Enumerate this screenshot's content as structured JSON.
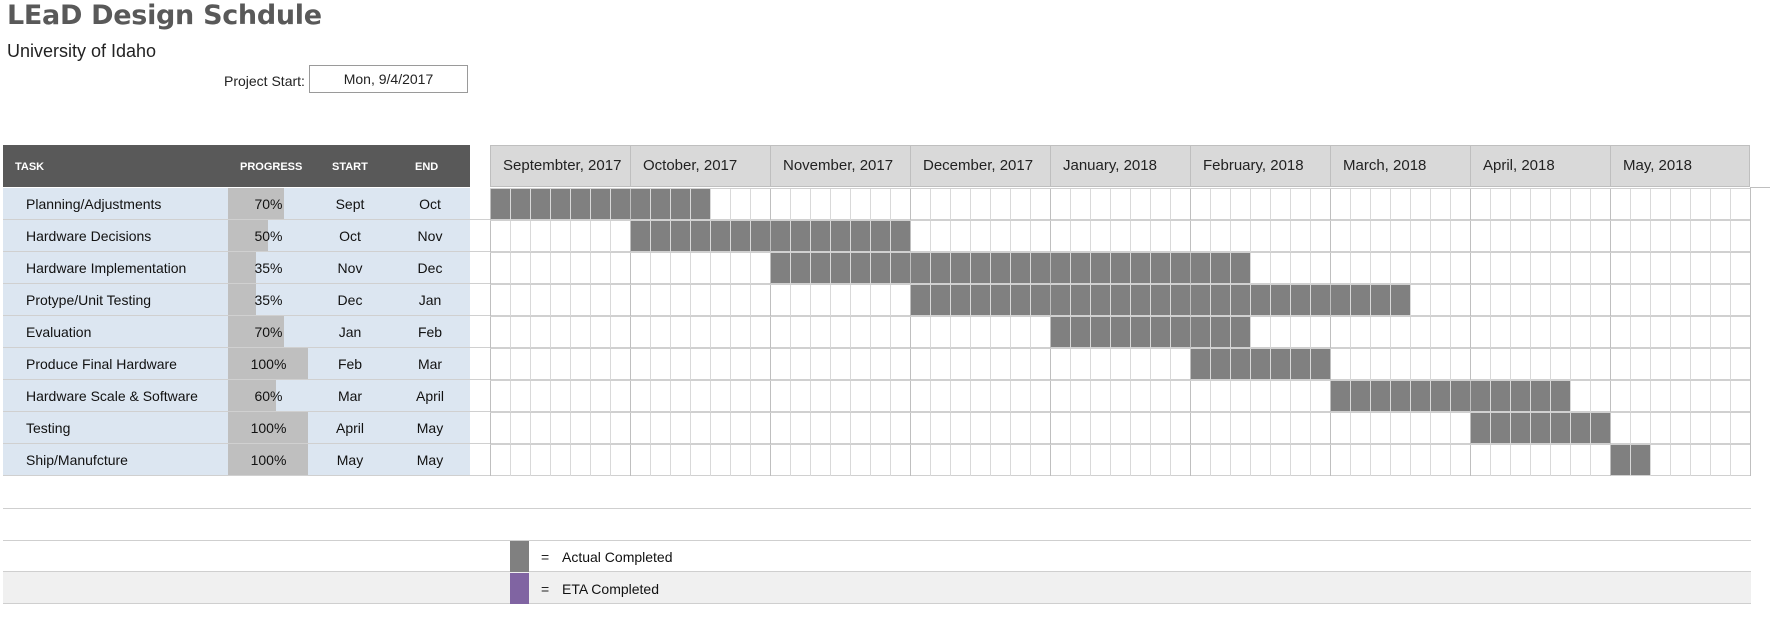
{
  "header": {
    "title": "LEaD Design Schdule",
    "subtitle": "University of Idaho",
    "project_start_label": "Project Start:",
    "project_start_value": "Mon, 9/4/2017"
  },
  "columns": {
    "task": "TASK",
    "progress": "PROGRESS",
    "start": "START",
    "end": "END"
  },
  "months": [
    "Septembter, 2017",
    "October, 2017",
    "November, 2017",
    "December, 2017",
    "January, 2018",
    "February, 2018",
    "March, 2018",
    "April, 2018",
    "May, 2018"
  ],
  "tasks": [
    {
      "name": "Planning/Adjustments",
      "progress": "70%",
      "progress_fraction": 0.7,
      "start": "Sept",
      "end": "Oct",
      "week_start": 0,
      "week_end": 10
    },
    {
      "name": "Hardware Decisions",
      "progress": "50%",
      "progress_fraction": 0.5,
      "start": "Oct",
      "end": "Nov",
      "week_start": 7,
      "week_end": 20
    },
    {
      "name": "Hardware Implementation",
      "progress": "35%",
      "progress_fraction": 0.35,
      "start": "Nov",
      "end": "Dec",
      "week_start": 14,
      "week_end": 37
    },
    {
      "name": "Protype/Unit Testing",
      "progress": "35%",
      "progress_fraction": 0.35,
      "start": "Dec",
      "end": "Jan",
      "week_start": 21,
      "week_end": 45
    },
    {
      "name": "Evaluation",
      "progress": "70%",
      "progress_fraction": 0.7,
      "start": "Jan",
      "end": "Feb",
      "week_start": 28,
      "week_end": 37
    },
    {
      "name": "Produce Final Hardware",
      "progress": "100%",
      "progress_fraction": 1.0,
      "start": "Feb",
      "end": "Mar",
      "week_start": 35,
      "week_end": 41
    },
    {
      "name": "Hardware Scale & Software",
      "progress": "60%",
      "progress_fraction": 0.6,
      "start": "Mar",
      "end": "April",
      "week_start": 42,
      "week_end": 53
    },
    {
      "name": "Testing",
      "progress": "100%",
      "progress_fraction": 1.0,
      "start": "April",
      "end": "May",
      "week_start": 49,
      "week_end": 55
    },
    {
      "name": "Ship/Manufcture",
      "progress": "100%",
      "progress_fraction": 1.0,
      "start": "May",
      "end": "May",
      "week_start": 56,
      "week_end": 57
    }
  ],
  "legend": {
    "actual_eq": "=",
    "actual_label": "Actual Completed",
    "actual_color": "#808080",
    "eta_eq": "=",
    "eta_label": "ETA Completed",
    "eta_color": "#8064a2"
  },
  "colors": {
    "header_dark": "#595959",
    "row_bg": "#dce6f1",
    "progress_fill": "#bfbfbf",
    "gantt_bar": "#808080",
    "month_bg": "#d9d9d9"
  }
}
